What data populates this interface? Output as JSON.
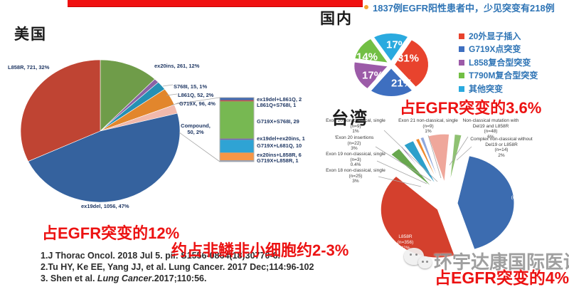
{
  "header": {
    "us_title": "美国",
    "cn_title": "国内",
    "tw_title": "台湾",
    "bullet_text": "1837例EGFR阳性患者中，少见突变有218例",
    "bullet_text_color": "#2e74b5",
    "bullet_dot_color": "#f2a531",
    "top_bar_color": "#f01010"
  },
  "annotations": {
    "us_pct": "占EGFR突变的12%",
    "us_note": "约占非鳞非小细胞约2-3%",
    "cn_pct": "占EGFR突变的3.6%",
    "tw_pct": "占EGFR突变的4%",
    "accent_red": "#ec1212"
  },
  "references": {
    "line1": "1.J Thorac Oncol. 2018 Jul 5. pii: S1556-0864(18)30770-6.",
    "line2": "2.Tu HY, Ke EE, Yang JJ, et al. Lung Cancer. 2017 Dec;114:96-102",
    "line3_pre": "3. Shen et al. ",
    "line3_italic": "Lung Cancer",
    "line3_post": ".2017;110:56."
  },
  "watermark": {
    "text": "环宇达康国际医讯"
  },
  "chart_data": [
    {
      "id": "us_pie",
      "type": "pie",
      "title": "美国",
      "start_angle": 0,
      "slices": [
        {
          "label": "ex20ins",
          "count": 261,
          "pct": 12,
          "color": "#6f9c49"
        },
        {
          "label": "S768I",
          "count": 15,
          "pct": 1,
          "color": "#8a62a5"
        },
        {
          "label": "L861Q",
          "count": 52,
          "pct": 2,
          "color": "#2590b4"
        },
        {
          "label": "G719X",
          "count": 96,
          "pct": 4,
          "color": "#e2862c"
        },
        {
          "label": "Compound",
          "count": 50,
          "pct": 2,
          "color": "#f1b9ac"
        },
        {
          "label": "ex19del",
          "count": 1056,
          "pct": 47,
          "color": "#35629e"
        },
        {
          "label": "L858R",
          "count": 721,
          "pct": 32,
          "color": "#bf4433"
        }
      ],
      "labels": {
        "l858r": "L858R, 721, 32%",
        "ex20ins": "ex20ins, 261, 12%",
        "s768i": "S768I, 15, 1%",
        "l861q": "L861Q, 52, 2%",
        "g719x": "G719X, 96, 4%",
        "compound_lines": [
          "Compound,",
          "50, 2%"
        ],
        "ex19del": "ex19del, 1056, 47%"
      },
      "bar_of_pie": {
        "total": 50,
        "segments": [
          {
            "label": "ex19del+L861Q",
            "value": 2,
            "color": "#3e68b0"
          },
          {
            "label": "L861Q+S768I",
            "value": 1,
            "color": "#c0504d"
          },
          {
            "label": "G719X+S768I",
            "value": 29,
            "color": "#77b852"
          },
          {
            "label": "ex19del+ex20ins",
            "value": 1,
            "color": "#8064a2"
          },
          {
            "label": "G719X+L681Q",
            "value": 10,
            "color": "#2fa3d4"
          },
          {
            "label": "ex20ins+L858R",
            "value": 6,
            "color": "#f79646"
          },
          {
            "label": "G719X+L858R",
            "value": 1,
            "color": "#8496b0"
          }
        ],
        "labels": {
          "s1": "ex19del+L861Q, 2",
          "s2": "L861Q+S768I, 1",
          "s3": "G719X+S768I, 29",
          "s4": "ex19del+ex20ins, 1",
          "s5": "G719X+L681Q, 10",
          "s6": "ex20ins+L858R, 6",
          "s7": "G719X+L858R, 1"
        }
      }
    },
    {
      "id": "cn_pie",
      "type": "pie",
      "title": "国内",
      "start_angle": 30,
      "slices": [
        {
          "label": "20外显子插入",
          "pct": 31,
          "color": "#e8432d"
        },
        {
          "label": "G719X点突变",
          "pct": 21,
          "color": "#3e6fc0"
        },
        {
          "label": "L858复合型突变",
          "pct": 17,
          "color": "#9c5ba8"
        },
        {
          "label": "T790M复合型突变",
          "pct": 14,
          "color": "#72bf44"
        },
        {
          "label": "其他突变",
          "pct": 17,
          "color": "#2aaadf"
        }
      ],
      "slice_labels": [
        "31%",
        "21%",
        "17%",
        "14%",
        "17%"
      ],
      "legend_position": "right",
      "legend_text_color": "#2e74b5"
    },
    {
      "id": "tw_pie",
      "type": "pie",
      "title": "台湾",
      "start_angle": 12,
      "exploded": true,
      "slices": [
        {
          "label": "Del19",
          "n": 354,
          "pct": 42,
          "color": "#3c6cb0"
        },
        {
          "label": "L858R",
          "n": 356,
          "pct": 42,
          "color": "#d4402d"
        },
        {
          "label": "Exon 18 non-classical, single",
          "n": 25,
          "pct": 3,
          "color": "#68a74e"
        },
        {
          "label": "Exon 19 non-classical, single",
          "n": 3,
          "pct": 0.4,
          "color": "#7d3a96"
        },
        {
          "label": "Exon 20 insertions",
          "n": 22,
          "pct": 3,
          "color": "#2da0cb"
        },
        {
          "label": "Exon 20 non-classical, single",
          "n": 9,
          "pct": 1,
          "color": "#ef8a2e"
        },
        {
          "label": "Exon 21 non-classical, single",
          "n": 9,
          "pct": 1,
          "color": "#8fa8dc"
        },
        {
          "label": "Non-classical mutation with Del19 and L858R",
          "n": 48,
          "pct": 6,
          "color": "#efa79b"
        },
        {
          "label": "Complex non-classical without Del19 or L858R",
          "n": 14,
          "pct": 2,
          "color": "#8fc172"
        }
      ],
      "inside_labels": {
        "del19": [
          "Del19",
          "(n=354)",
          "42%"
        ],
        "l858r": [
          "L858R",
          "(n=356)",
          "42%"
        ]
      },
      "callouts": {
        "exon20nc": [
          "Exon 20 non-classical, single",
          "(n=9)",
          "1%"
        ],
        "exon21nc": [
          "Exon 21 non-classical, single",
          "(n=9)",
          "1%"
        ],
        "ncwith": [
          "Non-classical mutation with",
          "Del19 and L858R",
          "(n=48)",
          "6%"
        ],
        "exon20ins": [
          "'Exon 20 insertions",
          "(n=22)",
          "3%"
        ],
        "exon19nc": [
          "Exon 19 non-classical, single",
          "(n=3)",
          "0.4%"
        ],
        "exon18nc": [
          "Exon 18 non-classical, single",
          "(n=25)",
          "3%"
        ],
        "complexwo": [
          "Complex non-classical without",
          "Del19 or L858R",
          "(n=14)",
          "2%"
        ]
      }
    }
  ]
}
